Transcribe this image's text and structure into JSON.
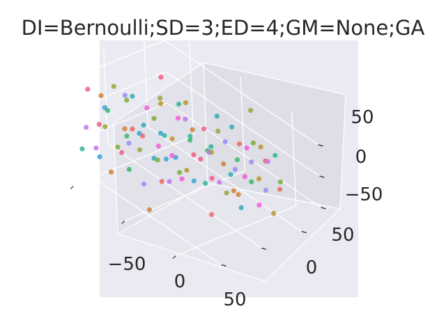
{
  "title": "DI=Bernoulli;SD=3;ED=4;GM=None;GA",
  "chart_data": {
    "type": "scatter",
    "projection": "3d",
    "title": "DI=Bernoulli;SD=3;ED=4;GM=None;GA",
    "grid": true,
    "style": "seaborn-darkgrid",
    "xlim": [
      -75,
      75
    ],
    "ylim": [
      -75,
      75
    ],
    "zlim": [
      -75,
      75
    ],
    "x_ticks": [
      "−50",
      "0",
      "50"
    ],
    "y_ticks": [
      "50",
      "0",
      "−50"
    ],
    "z_ticks": [
      "50",
      "0",
      "−50"
    ],
    "x_tick_values": [
      -50,
      0,
      50
    ],
    "y_tick_values": [
      50,
      0,
      -50
    ],
    "z_tick_values": [
      50,
      0,
      -50
    ],
    "palette": [
      "#f45c87",
      "#ec6a5f",
      "#d0813a",
      "#b89630",
      "#9ba43c",
      "#7cad3b",
      "#3cb86b",
      "#34b59c",
      "#36acb3",
      "#3aa3d3",
      "#9a8df2",
      "#c474ef",
      "#f25cd9"
    ],
    "points": [
      [
        -60,
        -40,
        50,
        0
      ],
      [
        -55,
        -30,
        40,
        2
      ],
      [
        -50,
        -20,
        55,
        4
      ],
      [
        -45,
        -35,
        30,
        6
      ],
      [
        -40,
        -10,
        45,
        8
      ],
      [
        -35,
        -25,
        60,
        10
      ],
      [
        -30,
        -5,
        35,
        12
      ],
      [
        -25,
        -30,
        20,
        1
      ],
      [
        -20,
        0,
        50,
        3
      ],
      [
        -15,
        -15,
        40,
        5
      ],
      [
        -10,
        10,
        55,
        7
      ],
      [
        -5,
        -20,
        30,
        9
      ],
      [
        0,
        5,
        45,
        11
      ],
      [
        5,
        -10,
        60,
        12
      ],
      [
        10,
        15,
        35,
        0
      ],
      [
        15,
        -5,
        50,
        2
      ],
      [
        20,
        20,
        40,
        4
      ],
      [
        25,
        0,
        25,
        6
      ],
      [
        30,
        25,
        55,
        8
      ],
      [
        35,
        10,
        45,
        10
      ],
      [
        40,
        30,
        30,
        12
      ],
      [
        45,
        15,
        50,
        1
      ],
      [
        50,
        35,
        40,
        3
      ],
      [
        55,
        20,
        60,
        5
      ],
      [
        60,
        40,
        35,
        7
      ],
      [
        -60,
        -20,
        10,
        9
      ],
      [
        -55,
        -50,
        0,
        11
      ],
      [
        -50,
        -40,
        5,
        0
      ],
      [
        -45,
        -15,
        -10,
        2
      ],
      [
        -40,
        -45,
        15,
        4
      ],
      [
        -35,
        -25,
        -5,
        6
      ],
      [
        -30,
        -10,
        10,
        8
      ],
      [
        -25,
        -35,
        0,
        10
      ],
      [
        -20,
        -5,
        -15,
        12
      ],
      [
        -15,
        -30,
        20,
        1
      ],
      [
        -10,
        0,
        5,
        3
      ],
      [
        -5,
        -25,
        -10,
        5
      ],
      [
        0,
        10,
        15,
        7
      ],
      [
        5,
        -15,
        0,
        9
      ],
      [
        10,
        20,
        -5,
        11
      ],
      [
        15,
        -5,
        10,
        0
      ],
      [
        20,
        25,
        -15,
        2
      ],
      [
        25,
        5,
        20,
        4
      ],
      [
        30,
        30,
        0,
        6
      ],
      [
        35,
        15,
        -10,
        8
      ],
      [
        40,
        35,
        5,
        10
      ],
      [
        45,
        20,
        -5,
        12
      ],
      [
        50,
        40,
        15,
        1
      ],
      [
        55,
        25,
        0,
        3
      ],
      [
        60,
        45,
        -10,
        5
      ],
      [
        -60,
        -50,
        -40,
        7
      ],
      [
        -55,
        -35,
        -55,
        9
      ],
      [
        -50,
        -45,
        -30,
        11
      ],
      [
        -45,
        -20,
        -45,
        0
      ],
      [
        -40,
        -40,
        -60,
        2
      ],
      [
        -35,
        -10,
        -35,
        4
      ],
      [
        -30,
        -30,
        -50,
        6
      ],
      [
        -25,
        -5,
        -40,
        8
      ],
      [
        -20,
        -25,
        -65,
        10
      ],
      [
        -15,
        5,
        -30,
        12
      ],
      [
        -10,
        -15,
        -55,
        1
      ],
      [
        -5,
        10,
        -45,
        3
      ],
      [
        0,
        -5,
        -35,
        5
      ],
      [
        5,
        20,
        -60,
        7
      ],
      [
        10,
        0,
        -40,
        9
      ],
      [
        15,
        25,
        -50,
        11
      ],
      [
        20,
        10,
        -30,
        0
      ],
      [
        25,
        30,
        -55,
        2
      ],
      [
        30,
        15,
        -45,
        4
      ],
      [
        35,
        40,
        -35,
        6
      ],
      [
        40,
        20,
        -60,
        8
      ],
      [
        45,
        45,
        -40,
        10
      ],
      [
        50,
        30,
        -50,
        12
      ],
      [
        55,
        50,
        -30,
        1
      ],
      [
        60,
        35,
        -55,
        3
      ],
      [
        -50,
        -5,
        25,
        5
      ],
      [
        -30,
        15,
        -20,
        7
      ],
      [
        -10,
        -40,
        35,
        9
      ],
      [
        10,
        -30,
        -25,
        11
      ],
      [
        30,
        -15,
        25,
        0
      ],
      [
        50,
        5,
        -20,
        2
      ],
      [
        -45,
        30,
        15,
        4
      ],
      [
        -25,
        40,
        -35,
        6
      ],
      [
        -5,
        50,
        20,
        8
      ],
      [
        15,
        45,
        -40,
        10
      ],
      [
        35,
        -45,
        15,
        12
      ],
      [
        55,
        -35,
        -25,
        1
      ],
      [
        -40,
        55,
        0,
        3
      ],
      [
        -20,
        -55,
        10,
        5
      ],
      [
        0,
        35,
        -15,
        7
      ],
      [
        20,
        -45,
        30,
        9
      ],
      [
        40,
        55,
        -5,
        11
      ],
      [
        -35,
        20,
        65,
        0
      ],
      [
        5,
        -50,
        -65,
        2
      ],
      [
        25,
        55,
        60,
        4
      ]
    ]
  }
}
